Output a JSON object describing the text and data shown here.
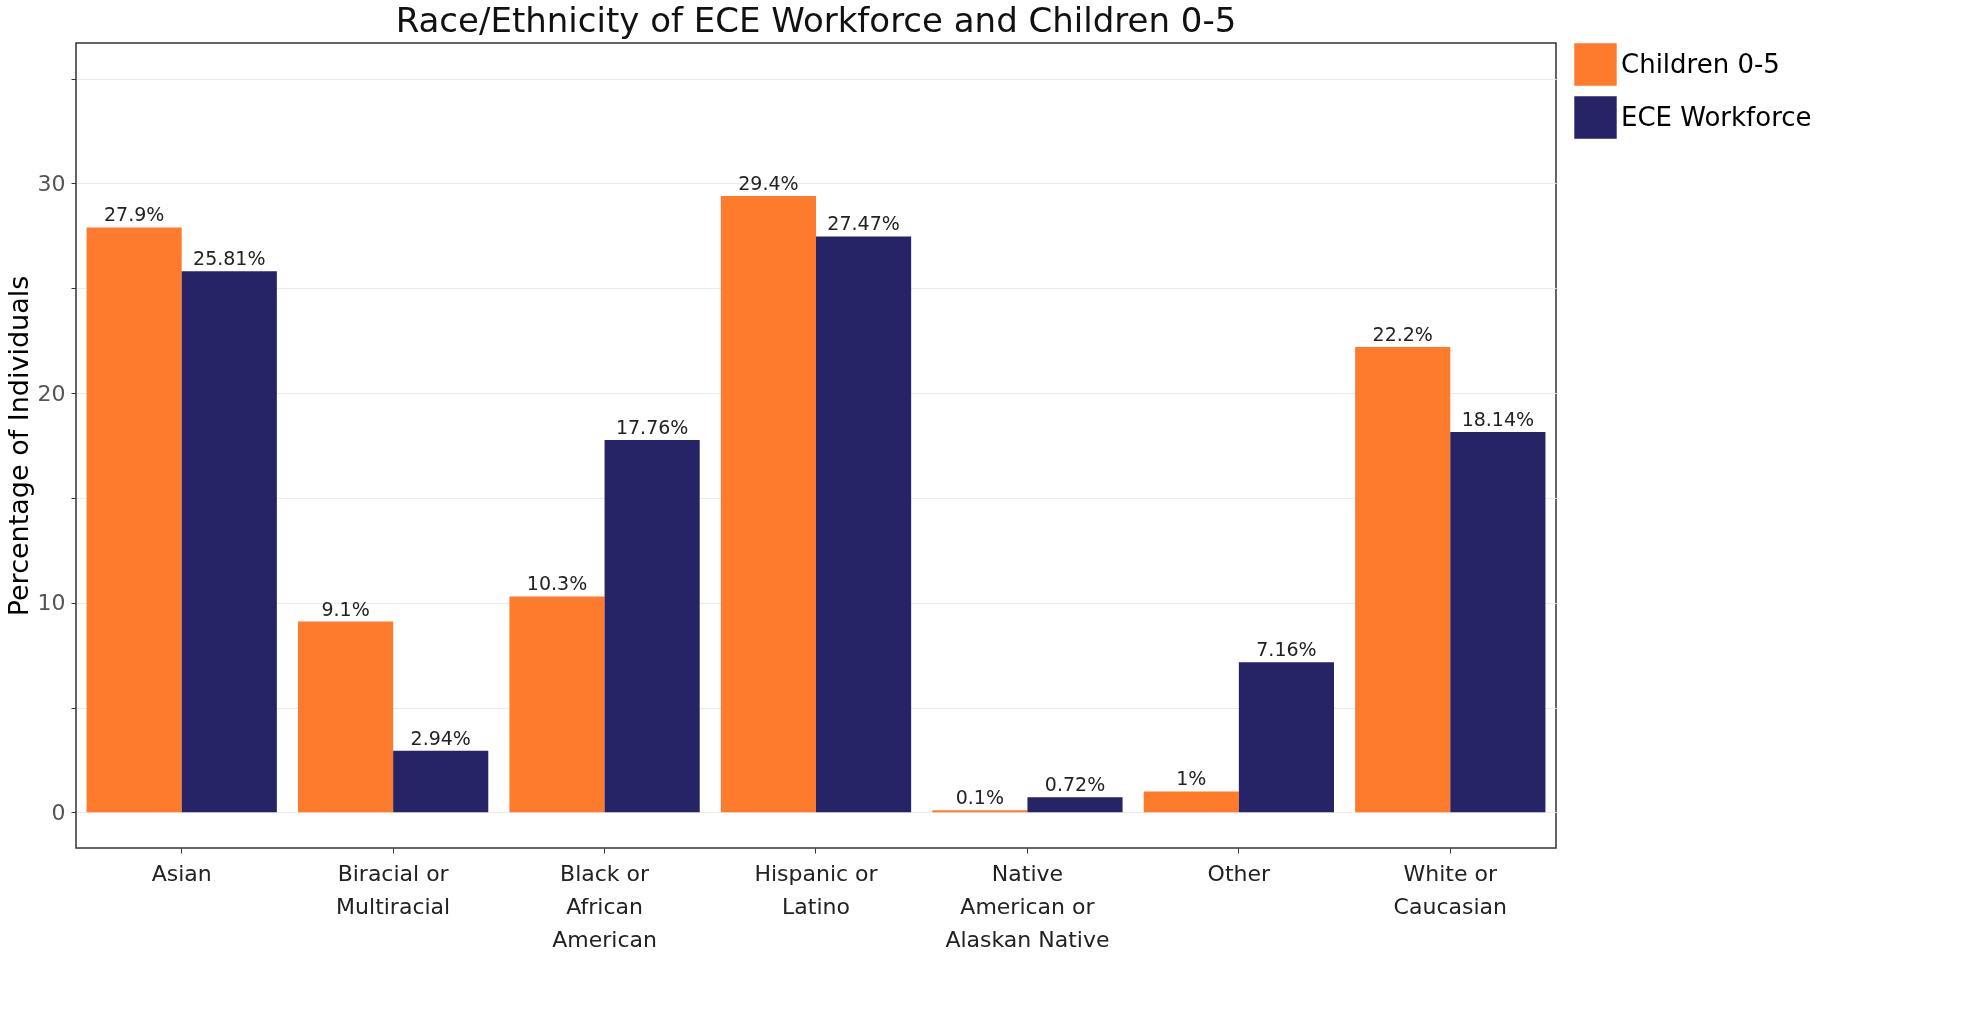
{
  "chart_data": {
    "type": "bar",
    "title": "Race/Ethnicity of ECE Workforce and Children 0-5",
    "ylabel": "Percentage of Individuals",
    "categories": [
      "Asian",
      "Biracial or Multiracial",
      "Black or African American",
      "Hispanic or Latino",
      "Native American or Alaskan Native",
      "Other",
      "White or Caucasian"
    ],
    "series": [
      {
        "name": "Children 0-5",
        "color": "#fe7b2e",
        "values": [
          27.9,
          9.1,
          10.3,
          29.4,
          0.1,
          1,
          22.2
        ],
        "value_labels": [
          "27.9%",
          "9.1%",
          "10.3%",
          "29.4%",
          "0.1%",
          "1%",
          "22.2%"
        ]
      },
      {
        "name": "ECE Workforce",
        "color": "#262466",
        "values": [
          25.81,
          2.94,
          17.76,
          27.47,
          0.72,
          7.16,
          18.14
        ],
        "value_labels": [
          "25.81%",
          "2.94%",
          "17.76%",
          "27.47%",
          "0.72%",
          "7.16%",
          "18.14%"
        ]
      }
    ],
    "ylim": [
      -1.7,
      36.7
    ],
    "yticks": [
      {
        "value": 0,
        "label": "0"
      },
      {
        "value": 5,
        "label": null
      },
      {
        "value": 10,
        "label": "10"
      },
      {
        "value": 15,
        "label": null
      },
      {
        "value": 20,
        "label": "20"
      },
      {
        "value": 25,
        "label": null
      },
      {
        "value": 30,
        "label": "30"
      },
      {
        "value": 35,
        "label": null
      }
    ],
    "grid": "y",
    "legend": "right"
  }
}
